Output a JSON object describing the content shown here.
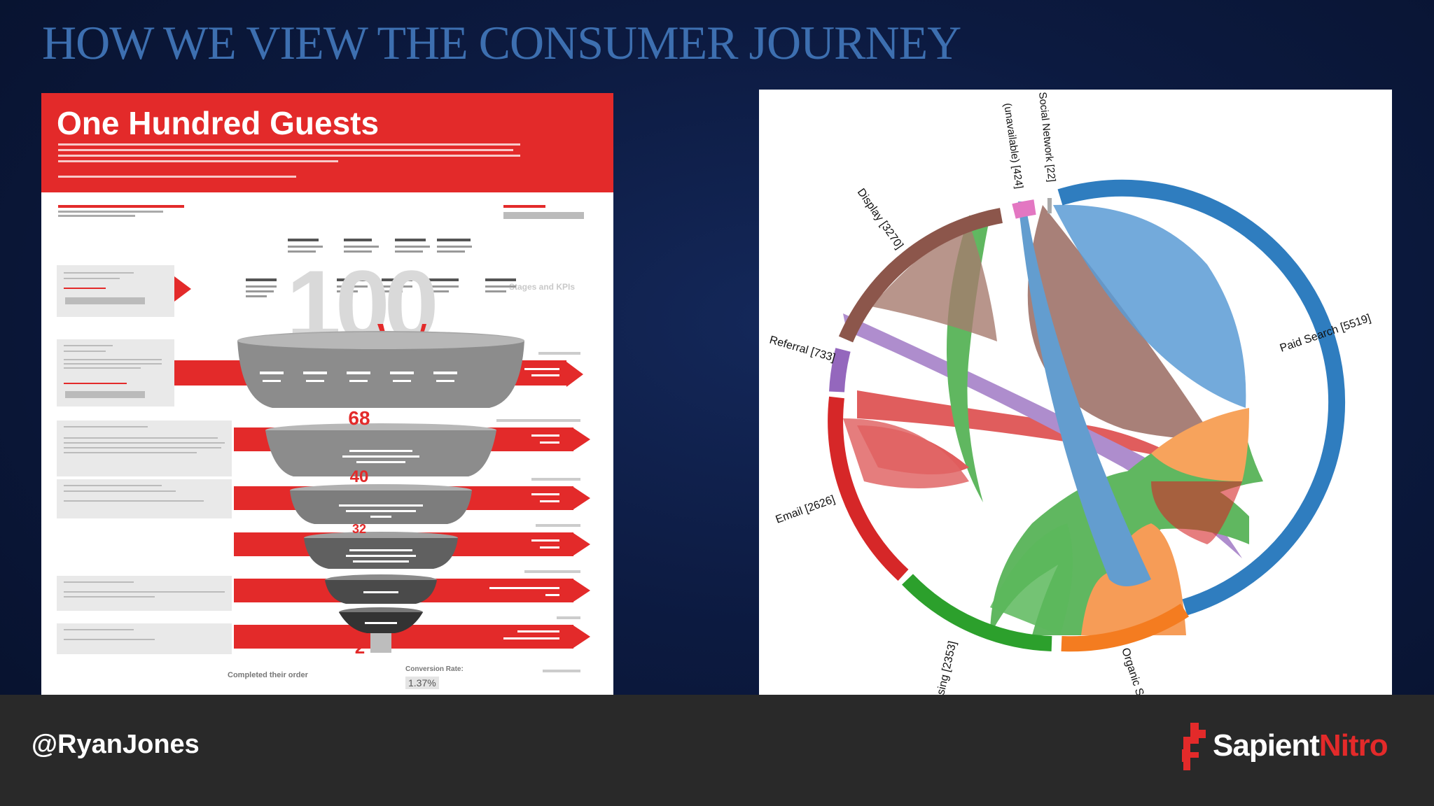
{
  "slide": {
    "title": "HOW WE VIEW THE CONSUMER JOURNEY"
  },
  "infographic": {
    "title": "One Hundred Guests",
    "big_number": "100",
    "funnel_numbers": [
      "68",
      "40",
      "32",
      "2"
    ],
    "conversion": {
      "label": "Conversion Rate:",
      "value": "1.37%"
    },
    "completed_label": "Completed their order",
    "stages_header": "Stages and KPIs",
    "colors": {
      "red": "#e32a2a",
      "gray": "#8c8c8c"
    }
  },
  "chord": {
    "segments": [
      {
        "label": "Paid Search [5519]",
        "color": "#2f7dbf"
      },
      {
        "label": "Organic S",
        "color": "#f47c20"
      },
      {
        "label": "sing [2353]",
        "color": "#2ca02c"
      },
      {
        "label": "Email [2626]",
        "color": "#d62728"
      },
      {
        "label": "Referral [733]",
        "color": "#9467bd"
      },
      {
        "label": "Display [3270]",
        "color": "#8c564b"
      },
      {
        "label": "(unavailable) [424]",
        "color": "#e377c2"
      },
      {
        "label": "Social Network [22]",
        "color": "#aaaaaa"
      }
    ]
  },
  "footer": {
    "handle": "@RyanJones",
    "logo_text_1": "Sapient",
    "logo_text_2": "Nitro",
    "logo_color": "#e32a2a"
  }
}
